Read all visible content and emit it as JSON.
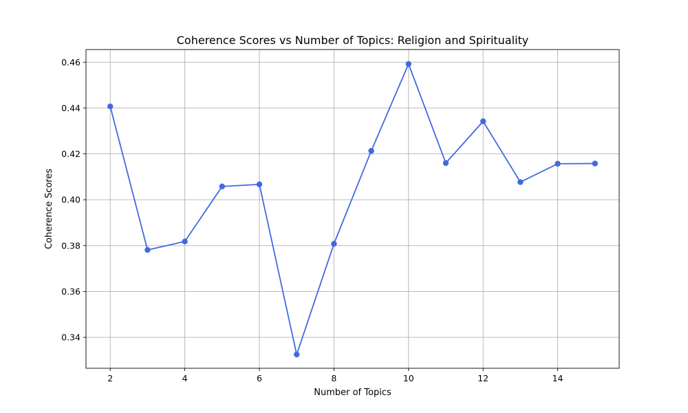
{
  "chart_data": {
    "type": "line",
    "title": "Coherence Scores vs Number of Topics: Religion and Spirituality",
    "xlabel": "Number of Topics",
    "ylabel": "Coherence Scores",
    "xlim": [
      1.35,
      15.65
    ],
    "ylim": [
      0.3265,
      0.4655
    ],
    "xticks": [
      2,
      4,
      6,
      8,
      10,
      12,
      14
    ],
    "yticks": [
      0.34,
      0.36,
      0.38,
      0.4,
      0.42,
      0.44,
      0.46
    ],
    "xtick_labels": [
      "2",
      "4",
      "6",
      "8",
      "10",
      "12",
      "14"
    ],
    "ytick_labels": [
      "0.34",
      "0.36",
      "0.38",
      "0.40",
      "0.42",
      "0.44",
      "0.46"
    ],
    "grid": true,
    "series": [
      {
        "color": "#4169e1",
        "marker": "circle",
        "x": [
          2,
          3,
          4,
          5,
          6,
          7,
          8,
          9,
          10,
          11,
          12,
          13,
          14,
          15
        ],
        "values": [
          0.4407,
          0.3781,
          0.3818,
          0.4058,
          0.4067,
          0.3325,
          0.3808,
          0.4213,
          0.4592,
          0.416,
          0.4342,
          0.4077,
          0.4157,
          0.4158
        ]
      }
    ]
  }
}
